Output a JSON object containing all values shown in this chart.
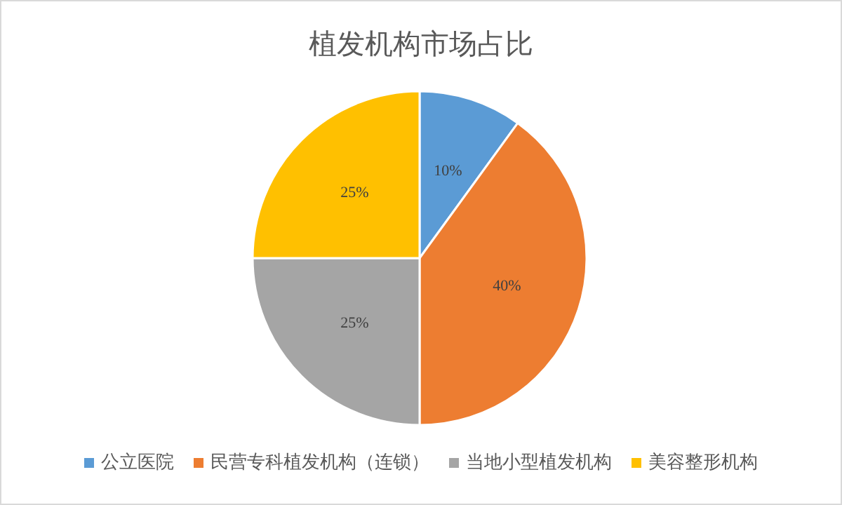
{
  "chart_data": {
    "type": "pie",
    "title": "植发机构市场占比",
    "categories": [
      "公立医院",
      "民营专科植发机构（连锁）",
      "当地小型植发机构",
      "美容整形机构"
    ],
    "values": [
      10,
      40,
      25,
      25
    ],
    "colors": [
      "#5b9bd5",
      "#ed7d31",
      "#a5a5a5",
      "#ffc000"
    ],
    "value_labels": [
      "10%",
      "40%",
      "25%",
      "25%"
    ],
    "legend": "bottom"
  }
}
